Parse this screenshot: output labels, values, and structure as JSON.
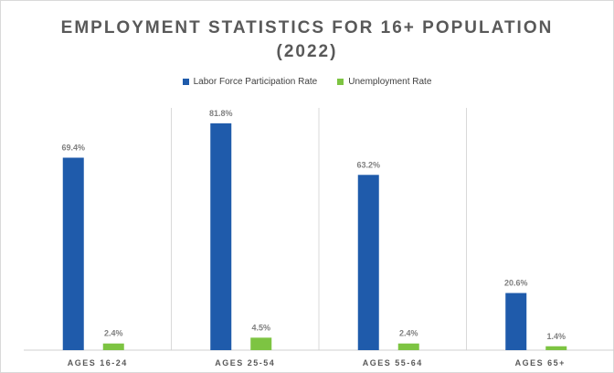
{
  "chart_data": {
    "type": "bar",
    "title_line1": "EMPLOYMENT STATISTICS FOR 16+ POPULATION",
    "title_line2": "(2022)",
    "categories": [
      "AGES 16-24",
      "AGES 25-54",
      "AGES 55-64",
      "AGES 65+"
    ],
    "series": [
      {
        "name": "Labor Force Participation Rate",
        "color": "#1f5bab",
        "values": [
          69.4,
          81.8,
          63.2,
          20.6
        ],
        "labels": [
          "69.4%",
          "81.8%",
          "63.2%",
          "20.6%"
        ]
      },
      {
        "name": "Unemployment Rate",
        "color": "#7dc442",
        "values": [
          2.4,
          4.5,
          2.4,
          1.4
        ],
        "labels": [
          "2.4%",
          "4.5%",
          "2.4%",
          "1.4%"
        ]
      }
    ],
    "ylim": [
      0,
      90
    ],
    "legend_position": "top",
    "gridlines": "vertical category separators"
  }
}
